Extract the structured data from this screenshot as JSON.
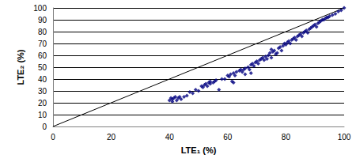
{
  "chart_data": {
    "type": "scatter",
    "x_label": "LTE₁ (%)",
    "y_label": "LTE₂ (%)",
    "xlim": [
      0,
      100
    ],
    "ylim": [
      0,
      100
    ],
    "xticks": [
      0,
      20,
      40,
      60,
      80,
      100
    ],
    "yticks": [
      0,
      10,
      20,
      30,
      40,
      50,
      60,
      70,
      80,
      90,
      100
    ],
    "grid": "y",
    "series": [
      {
        "type": "scatter",
        "marker": "diamond",
        "color": "#000080",
        "x": [
          40,
          40.5,
          41,
          41,
          41.5,
          42,
          42.5,
          43,
          43.5,
          44,
          45,
          46,
          47,
          48,
          49,
          50,
          51,
          51.5,
          52,
          52.5,
          53,
          53.5,
          54,
          54,
          55,
          55.5,
          56,
          57,
          58,
          59,
          60,
          60.5,
          61,
          61.5,
          62,
          62.5,
          63,
          64,
          64.5,
          65,
          65.5,
          66,
          66,
          67,
          67.5,
          68,
          68.5,
          69,
          69.5,
          70,
          70.5,
          71,
          71.5,
          72,
          72.5,
          73,
          73.5,
          74,
          74.5,
          75,
          75.5,
          76,
          76.5,
          77,
          77.5,
          78,
          78.5,
          79,
          79.5,
          80,
          80.5,
          81,
          81.5,
          82,
          82.5,
          83,
          83.5,
          84,
          84.5,
          85,
          85.5,
          86,
          86.5,
          87,
          87.5,
          88,
          88.5,
          89,
          89.5,
          90,
          90.5,
          91,
          91.5,
          92,
          92.5,
          93,
          93.5,
          94,
          94.5,
          95,
          96,
          97,
          98,
          99,
          100,
          62,
          68,
          75
        ],
        "values": [
          22,
          24,
          21,
          23,
          24,
          25,
          22,
          24,
          25,
          23,
          25,
          26,
          29,
          28,
          31,
          30,
          34,
          33,
          35,
          36,
          34,
          37,
          36,
          38,
          37,
          38,
          39,
          31,
          40,
          40,
          43,
          42,
          44,
          38,
          45,
          43,
          46,
          47,
          48,
          46,
          48,
          49,
          44,
          50,
          48,
          52,
          53,
          51,
          54,
          55,
          53,
          56,
          57,
          58,
          56,
          59,
          57,
          60,
          62,
          58,
          63,
          64,
          61,
          62,
          66,
          67,
          64,
          68,
          70,
          69,
          71,
          72,
          70,
          73,
          74,
          75,
          73,
          76,
          77,
          78,
          76,
          79,
          80,
          81,
          79,
          82,
          83,
          84,
          85,
          86,
          84,
          87,
          88,
          89,
          90,
          90,
          91,
          92,
          92,
          93,
          94,
          95,
          97,
          98,
          100,
          37,
          45,
          65
        ]
      },
      {
        "type": "line",
        "line_style": "solid",
        "color": "#000000",
        "x": [
          0,
          100
        ],
        "values": [
          0,
          100
        ]
      }
    ]
  }
}
